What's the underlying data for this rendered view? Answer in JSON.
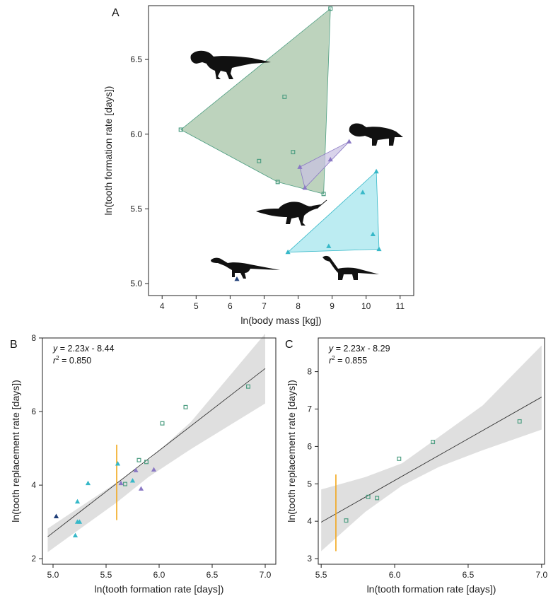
{
  "colors": {
    "theropod": "#4e9e82",
    "ceratopsian": "#8a78c4",
    "sauropod": "#36b8c8",
    "basal_sauropodomorph": "#1f3f78",
    "hull_theropod": "#a7c4a7",
    "hull_ceratopsian": "#c9c0e2",
    "hull_sauropod": "#a5e6ee",
    "band": "#d9d9d9",
    "vertical_bar": "#f2a81d",
    "silhouette": "#111111"
  },
  "icons": [
    "theropod-silhouette",
    "ceratopsian-silhouette",
    "spinosaur-silhouette",
    "basal-sauropodomorph-silhouette",
    "sauropod-silhouette"
  ],
  "chart_data": [
    {
      "panel": "A",
      "type": "scatter",
      "xlabel": "ln(body mass [kg])",
      "ylabel": "ln(tooth formation rate [days])",
      "xlim": [
        3.6,
        11.4
      ],
      "ylim": [
        4.92,
        6.86
      ],
      "xticks": [
        "4",
        "5",
        "6",
        "7",
        "8",
        "9",
        "10",
        "11"
      ],
      "yticks": [
        "5.0",
        "5.5",
        "6.0",
        "6.5"
      ],
      "series": [
        {
          "group": "theropod",
          "marker": "square",
          "hull": true,
          "x": [
            4.55,
            6.85,
            7.4,
            7.6,
            7.85,
            8.75,
            8.95
          ],
          "y": [
            6.03,
            5.82,
            5.68,
            6.25,
            5.88,
            5.6,
            6.84
          ]
        },
        {
          "group": "ceratopsian",
          "marker": "triangle",
          "hull": true,
          "x": [
            8.05,
            8.2,
            8.95,
            9.5
          ],
          "y": [
            5.78,
            5.64,
            5.83,
            5.95
          ]
        },
        {
          "group": "sauropod",
          "marker": "triangle",
          "hull": true,
          "x": [
            7.7,
            8.9,
            9.9,
            10.2,
            10.3,
            10.38
          ],
          "y": [
            5.21,
            5.25,
            5.61,
            5.33,
            5.75,
            5.23
          ]
        },
        {
          "group": "basal_sauropodomorph",
          "marker": "triangle",
          "hull": false,
          "x": [
            6.2
          ],
          "y": [
            5.03
          ]
        }
      ]
    },
    {
      "panel": "B",
      "type": "scatter",
      "xlabel": "ln(tooth formation rate [days])",
      "ylabel": "ln(tooth replacement rate [days])",
      "xlim": [
        4.9,
        7.1
      ],
      "ylim": [
        1.85,
        8.0
      ],
      "xticks": [
        "5.0",
        "5.5",
        "6.0",
        "6.5",
        "7.0"
      ],
      "yticks": [
        "2",
        "4",
        "6",
        "8"
      ],
      "annotations": {
        "equation_parts": [
          "y",
          " = 2.23",
          "x",
          " - 8.44"
        ],
        "r2_parts": [
          "r",
          "2",
          " = 0.850"
        ]
      },
      "regression": {
        "slope": 2.23,
        "intercept": -8.44
      },
      "band": [
        [
          4.95,
          2.18,
          2.82
        ],
        [
          5.6,
          3.53,
          4.07
        ],
        [
          5.9,
          4.22,
          4.68
        ],
        [
          6.3,
          4.98,
          5.72
        ],
        [
          7.0,
          6.22,
          8.12
        ]
      ],
      "vertical_bar": {
        "x": 5.6,
        "y": [
          3.05,
          5.1
        ]
      },
      "series": [
        {
          "group": "theropod",
          "marker": "square",
          "x": [
            5.68,
            5.81,
            5.88,
            6.03,
            6.25,
            6.84
          ],
          "y": [
            4.03,
            4.68,
            4.63,
            5.68,
            6.12,
            6.68
          ]
        },
        {
          "group": "ceratopsian",
          "marker": "triangle",
          "x": [
            5.64,
            5.78,
            5.83,
            5.95
          ],
          "y": [
            4.05,
            4.4,
            3.9,
            4.42
          ]
        },
        {
          "group": "sauropod",
          "marker": "triangle",
          "x": [
            5.21,
            5.23,
            5.25,
            5.33,
            5.61,
            5.75,
            5.23
          ],
          "y": [
            2.63,
            3.55,
            3.0,
            4.05,
            4.58,
            4.12,
            3.0
          ]
        },
        {
          "group": "basal_sauropodomorph",
          "marker": "triangle",
          "x": [
            5.03
          ],
          "y": [
            3.15
          ]
        }
      ]
    },
    {
      "panel": "C",
      "type": "scatter",
      "xlabel": "ln(tooth formation rate [days])",
      "ylabel": "ln(tooth replacement rate [days])",
      "xlim": [
        5.48,
        7.02
      ],
      "ylim": [
        2.85,
        8.9
      ],
      "xticks": [
        "5.5",
        "6.0",
        "6.5",
        "7.0"
      ],
      "yticks": [
        "3",
        "4",
        "5",
        "6",
        "7",
        "8"
      ],
      "annotations": {
        "equation_parts": [
          "y",
          " = 2.23",
          "x",
          " - 8.29"
        ],
        "r2_parts": [
          "r",
          "2",
          " = 0.855"
        ]
      },
      "regression": {
        "slope": 2.23,
        "intercept": -8.29
      },
      "band": [
        [
          5.5,
          3.2,
          4.85
        ],
        [
          5.8,
          4.25,
          5.18
        ],
        [
          6.05,
          4.95,
          5.55
        ],
        [
          6.3,
          5.45,
          6.25
        ],
        [
          6.6,
          5.9,
          7.1
        ],
        [
          7.0,
          6.45,
          8.7
        ]
      ],
      "vertical_bar": {
        "x": 5.6,
        "y": [
          3.2,
          5.25
        ]
      },
      "series": [
        {
          "group": "theropod",
          "marker": "square",
          "x": [
            5.67,
            5.82,
            5.88,
            6.03,
            6.26,
            6.85
          ],
          "y": [
            4.02,
            4.65,
            4.62,
            5.67,
            6.12,
            6.67
          ]
        }
      ]
    }
  ]
}
